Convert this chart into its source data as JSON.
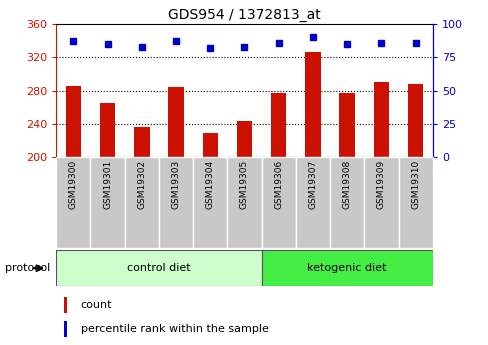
{
  "title": "GDS954 / 1372813_at",
  "categories": [
    "GSM19300",
    "GSM19301",
    "GSM19302",
    "GSM19303",
    "GSM19304",
    "GSM19305",
    "GSM19306",
    "GSM19307",
    "GSM19308",
    "GSM19309",
    "GSM19310"
  ],
  "counts": [
    285,
    265,
    236,
    284,
    229,
    243,
    277,
    326,
    277,
    290,
    288
  ],
  "percentile_ranks": [
    87,
    85,
    83,
    87,
    82,
    83,
    86,
    90,
    85,
    86,
    86
  ],
  "ylim_left": [
    200,
    360
  ],
  "ylim_right": [
    0,
    100
  ],
  "yticks_left": [
    200,
    240,
    280,
    320,
    360
  ],
  "yticks_right": [
    0,
    25,
    50,
    75,
    100
  ],
  "bar_color": "#cc1100",
  "dot_color": "#0000cc",
  "control_diet_label": "control diet",
  "ketogenic_diet_label": "ketogenic diet",
  "protocol_label": "protocol",
  "legend_count": "count",
  "legend_percentile": "percentile rank within the sample",
  "control_indices": [
    0,
    1,
    2,
    3,
    4,
    5
  ],
  "ketogenic_indices": [
    6,
    7,
    8,
    9,
    10
  ],
  "control_color": "#ccffcc",
  "ketogenic_color": "#44ee44",
  "tick_bg_color": "#c8c8c8",
  "bar_width": 0.45,
  "grid_yticks": [
    240,
    280,
    320
  ]
}
